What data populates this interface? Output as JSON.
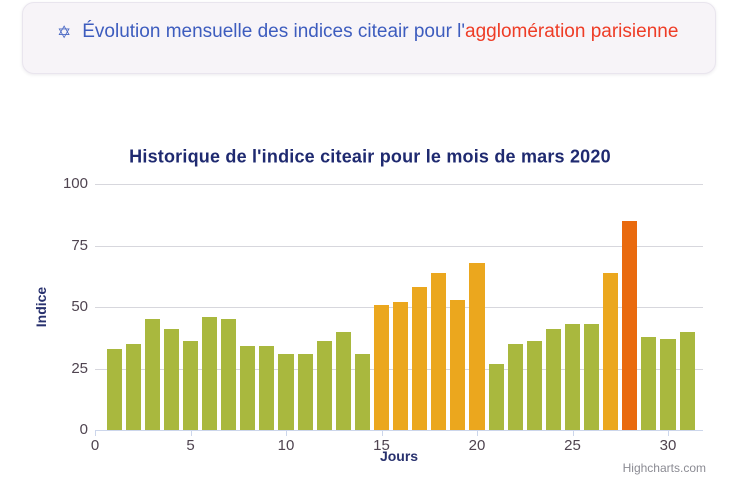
{
  "header": {
    "icon": "✡",
    "title_part1": "Évolution mensuelle des indices citeair pour l'",
    "title_part2": "agglomération parisienne",
    "color_part1": "#3d5cbe",
    "color_part2": "#ee3c26",
    "background": "#f7f4f8"
  },
  "chart": {
    "title": "Historique de l'indice citeair pour le mois de mars 2020",
    "credits": "Highcharts.com"
  },
  "chart_data": {
    "type": "bar",
    "title": "Historique de l'indice citeair pour le mois de mars 2020",
    "xlabel": "Jours",
    "ylabel": "Indice",
    "x": [
      1,
      2,
      3,
      4,
      5,
      6,
      7,
      8,
      9,
      10,
      11,
      12,
      13,
      14,
      15,
      16,
      17,
      18,
      19,
      20,
      21,
      22,
      23,
      24,
      25,
      26,
      27,
      28,
      29,
      30,
      31
    ],
    "values": [
      33,
      35,
      45,
      41,
      36,
      46,
      45,
      34,
      34,
      31,
      31,
      36,
      40,
      31,
      51,
      52,
      58,
      64,
      53,
      68,
      27,
      35,
      36,
      41,
      43,
      43,
      64,
      85,
      38,
      37,
      40
    ],
    "ylim": [
      0,
      100
    ],
    "xlim": [
      0,
      31.8
    ],
    "yticks": [
      0,
      25,
      50,
      75,
      100
    ],
    "xticks": [
      0,
      5,
      10,
      15,
      20,
      25,
      30
    ],
    "grid": true,
    "legend": false,
    "palette": {
      "low": "#a9b83e",
      "medium": "#eba71e",
      "high": "#e96a0e"
    },
    "color_thresholds": {
      "medium_min": 50,
      "high_min": 75
    },
    "title_color": "#1f2a70",
    "axis_title_color": "#28316e",
    "tick_label_color": "#4f4450"
  }
}
